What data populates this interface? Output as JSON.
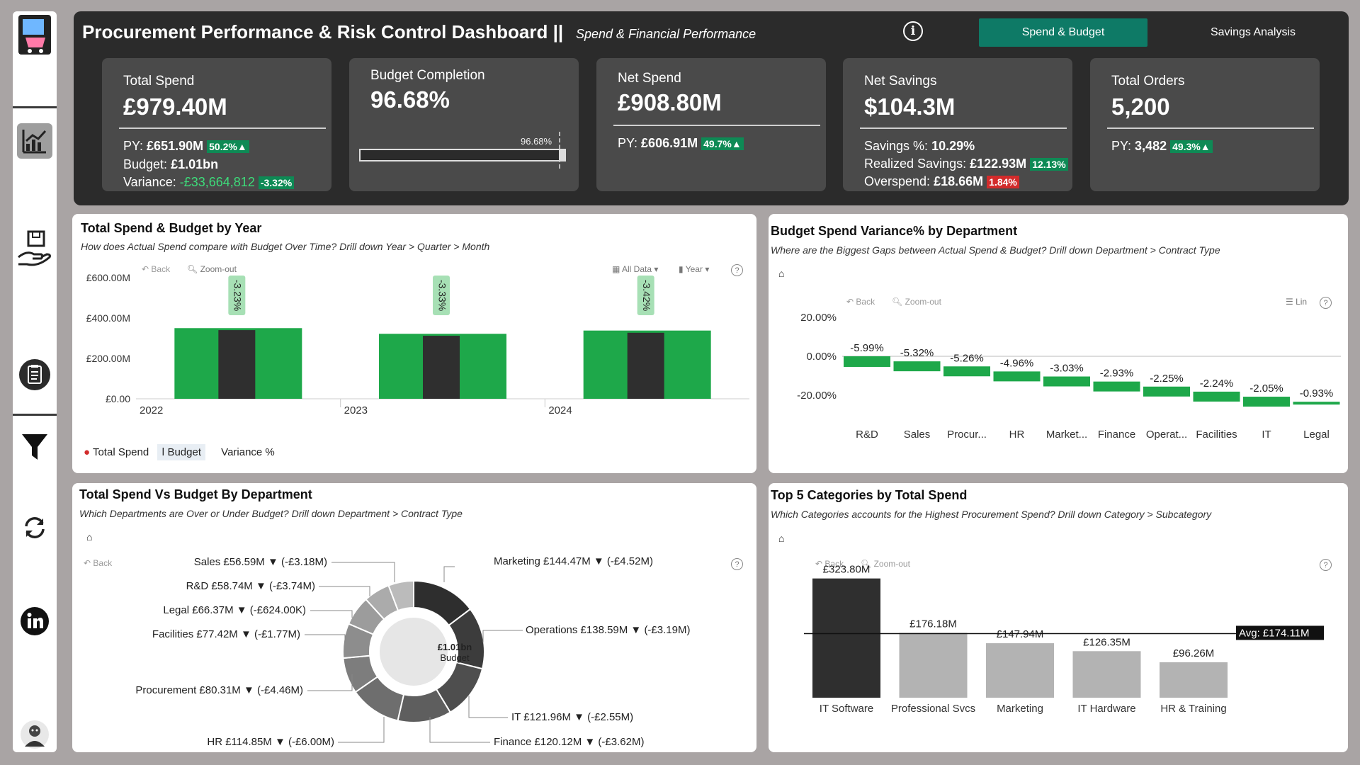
{
  "header": {
    "title": "Procurement Performance & Risk Control Dashboard ||",
    "subtitle": "Spend & Financial Performance",
    "nav": {
      "spend_budget": "Spend & Budget",
      "savings_analysis": "Savings Analysis"
    }
  },
  "kpis": {
    "total_spend": {
      "label": "Total Spend",
      "value": "£979.40M",
      "py_label": "PY:",
      "py_value": "£651.90M",
      "py_change": "50.2%▲",
      "budget_label": "Budget:",
      "budget_value": "£1.01bn",
      "variance_label": "Variance:",
      "variance_value": "-£33,664,812",
      "variance_pct": "-3.32%"
    },
    "budget_completion": {
      "label": "Budget Completion",
      "value": "96.68%",
      "bar_label": "96.68%",
      "bar_fraction": 0.9668
    },
    "net_spend": {
      "label": "Net Spend",
      "value": "£908.80M",
      "py_label": "PY:",
      "py_value": "£606.91M",
      "py_change": "49.7%▲"
    },
    "net_savings": {
      "label": "Net Savings",
      "value": "$104.3M",
      "savings_pct_label": "Savings %:",
      "savings_pct_value": "10.29%",
      "realized_label": "Realized Savings:",
      "realized_value": "£122.93M",
      "realized_pct": "12.13%",
      "overspend_label": "Overspend:",
      "overspend_value": "£18.66M",
      "overspend_pct": "1.84%"
    },
    "total_orders": {
      "label": "Total Orders",
      "value": "5,200",
      "py_label": "PY:",
      "py_value": "3,482",
      "py_change": "49.3%▲"
    }
  },
  "controls": {
    "back": "Back",
    "zoom_out": "Zoom-out",
    "all_data": "All Data",
    "year": "Year",
    "lin": "Lin"
  },
  "chart_year": {
    "title": "Total Spend & Budget by Year",
    "subtitle": "How does Actual Spend compare with Budget Over Time? Drill down Year > Quarter > Month",
    "legend": {
      "spend": "Total Spend",
      "budget": "Budget",
      "variance": "Variance %"
    }
  },
  "chart_variance": {
    "title": "Budget Spend Variance% by Department",
    "subtitle": "Where are the Biggest Gaps between Actual Spend & Budget? Drill down Department > Contract Type"
  },
  "chart_donut": {
    "title": "Total Spend Vs Budget By Department",
    "subtitle": "Which Departments are Over or Under Budget? Drill down Department > Contract Type",
    "center_value": "£1.01bn",
    "center_label": "Budget"
  },
  "chart_top5": {
    "title": "Top 5 Categories by Total Spend",
    "subtitle": "Which Categories accounts for the Highest Procurement Spend? Drill down Category > Subcategory",
    "avg_label": "Avg: £174.11M"
  },
  "colors": {
    "green": "#1ea84a",
    "dark": "#2f2f2f",
    "teal": "#0e7a66",
    "gray": "#b3b3b3"
  },
  "chart_data": [
    {
      "type": "bar",
      "categories": [
        "2022",
        "2023",
        "2024"
      ],
      "series": [
        {
          "name": "Total Spend",
          "values": [
            340,
            312,
            327
          ]
        },
        {
          "name": "Budget",
          "values": [
            350,
            322,
            338
          ]
        }
      ],
      "variance_labels": [
        "-3.23%",
        "-3.33%",
        "-3.42%"
      ],
      "ylim": [
        0,
        600
      ],
      "yticks": [
        "£0.00",
        "£200.00M",
        "£400.00M",
        "£600.00M"
      ],
      "ytick_values": [
        0,
        200,
        400,
        600
      ]
    },
    {
      "type": "bar",
      "categories": [
        "R&D",
        "Sales",
        "Procur...",
        "HR",
        "Market...",
        "Finance",
        "Operat...",
        "Facilities",
        "IT",
        "Legal"
      ],
      "values": [
        -5.99,
        -5.32,
        -5.26,
        -4.96,
        -3.03,
        -2.93,
        -2.25,
        -2.24,
        -2.05,
        -0.93
      ],
      "labels": [
        "-5.99%",
        "-5.32%",
        "-5.26%",
        "-4.96%",
        "-3.03%",
        "-2.93%",
        "-2.25%",
        "-2.24%",
        "-2.05%",
        "-0.93%"
      ],
      "yticks": [
        "20.00%",
        "0.00%",
        "-20.00%"
      ],
      "ytick_values": [
        20,
        0,
        -20
      ]
    },
    {
      "type": "pie",
      "labels": [
        "Marketing £144.47M ▼ (-£4.52M)",
        "Operations £138.59M ▼ (-£3.19M)",
        "IT £121.96M ▼ (-£2.55M)",
        "Finance £120.12M ▼ (-£3.62M)",
        "HR £114.85M ▼ (-£6.00M)",
        "Procurement £80.31M ▼ (-£4.46M)",
        "Facilities £77.42M ▼ (-£1.77M)",
        "Legal £66.37M ▼ (-£624.00K)",
        "R&D £58.74M ▼ (-£3.74M)",
        "Sales £56.59M ▼ (-£3.18M)"
      ],
      "values": [
        144.47,
        138.59,
        121.96,
        120.12,
        114.85,
        80.31,
        77.42,
        66.37,
        58.74,
        56.59
      ]
    },
    {
      "type": "bar",
      "categories": [
        "IT Software",
        "Professional Svcs",
        "Marketing",
        "IT Hardware",
        "HR & Training"
      ],
      "values": [
        323.8,
        176.18,
        147.94,
        126.35,
        96.26
      ],
      "labels": [
        "£323.80M",
        "£176.18M",
        "£147.94M",
        "£126.35M",
        "£96.26M"
      ],
      "average": 174.11
    }
  ]
}
